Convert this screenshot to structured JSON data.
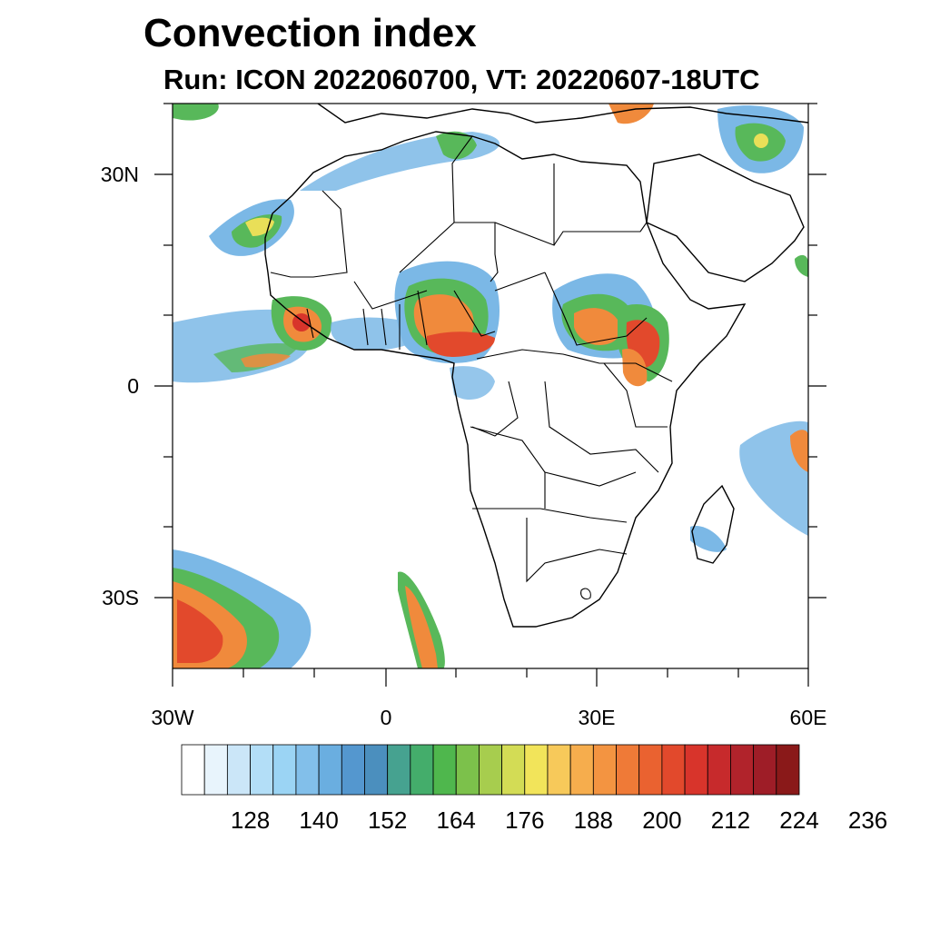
{
  "title": "Convection index",
  "subtitle": "Run: ICON 2022060700,  VT: 20220607-18UTC",
  "map": {
    "region": "Africa",
    "lon_range": [
      -30,
      60
    ],
    "lat_range": [
      -40,
      40
    ],
    "x_ticks": [
      {
        "value": -30,
        "label": "30W"
      },
      {
        "value": 0,
        "label": "0"
      },
      {
        "value": 30,
        "label": "30E"
      },
      {
        "value": 60,
        "label": "60E"
      }
    ],
    "y_ticks": [
      {
        "value": 30,
        "label": "30N"
      },
      {
        "value": 0,
        "label": "0"
      },
      {
        "value": -30,
        "label": "30S"
      }
    ]
  },
  "colorbar": {
    "colors": [
      "#ffffff",
      "#e8f4fc",
      "#cbe6f8",
      "#b3def7",
      "#9bd4f4",
      "#82bfea",
      "#6aaee0",
      "#5497cf",
      "#4b8fbe",
      "#46a290",
      "#44ad6b",
      "#4fb74d",
      "#7cc14b",
      "#a7cd4e",
      "#d3dc55",
      "#f2e45a",
      "#f7c95a",
      "#f6ad4d",
      "#f39441",
      "#ef7a37",
      "#ea6230",
      "#e2492c",
      "#d8342b",
      "#c72a2c",
      "#b1232b",
      "#9e1d27",
      "#8a1919"
    ],
    "labels": [
      "128",
      "140",
      "152",
      "164",
      "176",
      "188",
      "200",
      "212",
      "224",
      "236"
    ]
  },
  "fill_colors": {
    "blue": "#7bb8e6",
    "green": "#58b85a",
    "yellow": "#e9df58",
    "orange": "#f08a3c",
    "red": "#d8342b"
  }
}
